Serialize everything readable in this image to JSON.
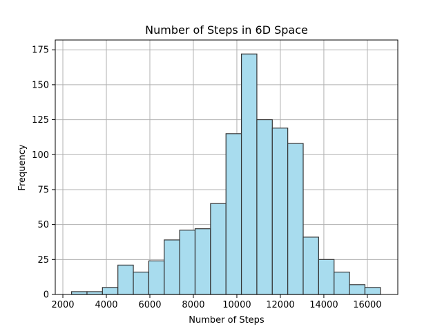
{
  "chart_data": {
    "type": "histogram",
    "title": "Number of Steps in 6D Space",
    "xlabel": "Number of Steps",
    "ylabel": "Frequency",
    "xlim": [
      1650,
      17400
    ],
    "ylim": [
      0,
      182
    ],
    "xticks": [
      2000,
      4000,
      6000,
      8000,
      10000,
      12000,
      14000,
      16000
    ],
    "yticks": [
      0,
      25,
      50,
      75,
      100,
      125,
      150,
      175
    ],
    "bins": [
      {
        "x0": 2400,
        "x1": 3110,
        "count": 2
      },
      {
        "x0": 3110,
        "x1": 3820,
        "count": 2
      },
      {
        "x0": 3820,
        "x1": 4530,
        "count": 5
      },
      {
        "x0": 4530,
        "x1": 5240,
        "count": 21
      },
      {
        "x0": 5240,
        "x1": 5950,
        "count": 16
      },
      {
        "x0": 5950,
        "x1": 6660,
        "count": 24
      },
      {
        "x0": 6660,
        "x1": 7370,
        "count": 39
      },
      {
        "x0": 7370,
        "x1": 8080,
        "count": 46
      },
      {
        "x0": 8080,
        "x1": 8790,
        "count": 47
      },
      {
        "x0": 8790,
        "x1": 9500,
        "count": 65
      },
      {
        "x0": 9500,
        "x1": 10210,
        "count": 115
      },
      {
        "x0": 10210,
        "x1": 10920,
        "count": 172
      },
      {
        "x0": 10920,
        "x1": 11630,
        "count": 125
      },
      {
        "x0": 11630,
        "x1": 12340,
        "count": 119
      },
      {
        "x0": 12340,
        "x1": 13050,
        "count": 108
      },
      {
        "x0": 13050,
        "x1": 13760,
        "count": 41
      },
      {
        "x0": 13760,
        "x1": 14470,
        "count": 25
      },
      {
        "x0": 14470,
        "x1": 15180,
        "count": 16
      },
      {
        "x0": 15180,
        "x1": 15890,
        "count": 7
      },
      {
        "x0": 15890,
        "x1": 16600,
        "count": 5
      }
    ],
    "grid": true,
    "bar_color": "#a8dcee",
    "edge_color": "#333333"
  }
}
